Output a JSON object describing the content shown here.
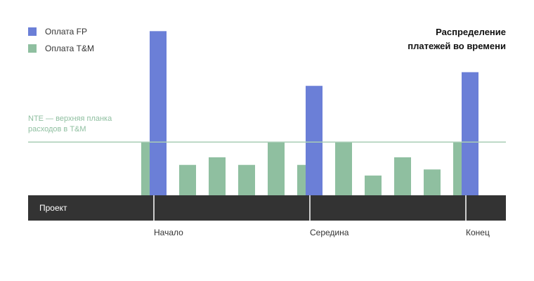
{
  "chart_data": {
    "type": "bar",
    "title_lines": [
      "Распределение",
      "платежей во времени"
    ],
    "legend": [
      {
        "key": "fp",
        "label": "Оплата FP",
        "color": "#6b7fd7"
      },
      {
        "key": "tm",
        "label": "Оплата T&M",
        "color": "#8fbfa0"
      }
    ],
    "series": [
      {
        "name": "Оплата FP",
        "color": "#6b7fd7",
        "values": [
          10.8,
          7.2,
          8.1
        ]
      },
      {
        "name": "Оплата T&M",
        "color": "#8fbfa0",
        "values": [
          3.5,
          2.0,
          2.5,
          2.0,
          3.5,
          2.0,
          3.5,
          1.3,
          2.5,
          1.7,
          3.5
        ]
      }
    ],
    "ylim": [
      0,
      11
    ],
    "threshold": {
      "value": 3.5,
      "color": "#a9cdb6",
      "label_lines": [
        "NTE — верхняя планка",
        "расходов в T&M"
      ]
    },
    "timeline": {
      "label": "Проект",
      "color": "#333333",
      "milestones": [
        "Начало",
        "Середина",
        "Конец"
      ]
    },
    "xlabel": "",
    "ylabel": "",
    "legend_position": "top-left",
    "grid": false
  }
}
